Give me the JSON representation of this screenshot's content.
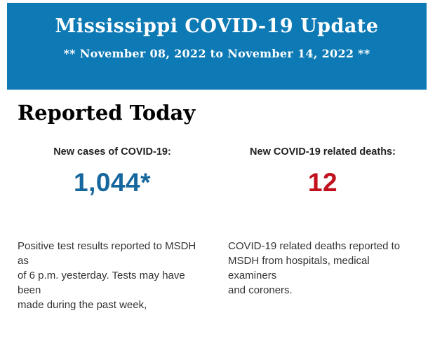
{
  "page": {
    "background_color": "#ffffff"
  },
  "banner": {
    "background_color": "#0d7ab5",
    "text_color": "#ffffff",
    "title": "Mississippi COVID-19 Update",
    "subtitle": "** November 08, 2022 to November 14, 2022 **"
  },
  "main": {
    "heading": "Reported Today",
    "stats": [
      {
        "label": "New cases of COVID-19:",
        "value": "1,044*",
        "value_color": "#15679d",
        "description": "Positive test results reported to MSDH as\nof 6 p.m. yesterday. Tests may have been\nmade during the past week,"
      },
      {
        "label": "New COVID-19 related deaths:",
        "value": "12",
        "value_color": "#c2101e",
        "description": "COVID-19 related deaths reported to\nMSDH from hospitals, medical examiners\nand coroners."
      }
    ]
  }
}
